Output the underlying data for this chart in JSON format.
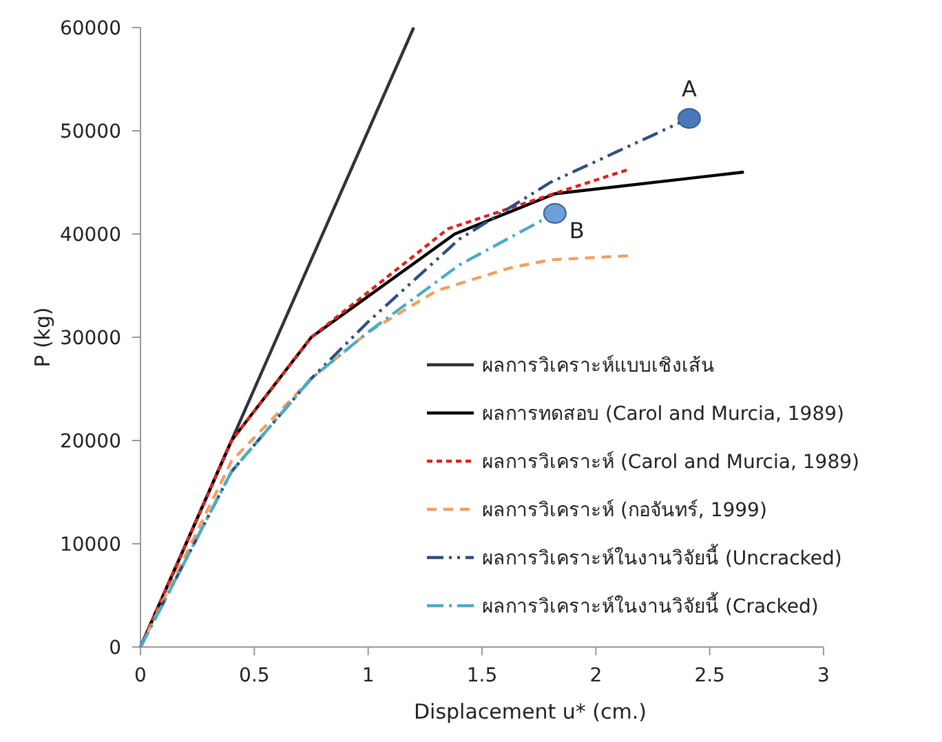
{
  "chart_data": {
    "type": "line",
    "xlabel": "Displacement u* (cm.)",
    "ylabel": "P (kg)",
    "xlim": [
      0,
      3
    ],
    "xticks": [
      0,
      0.5,
      1,
      1.5,
      2,
      2.5,
      3
    ],
    "ylim": [
      0,
      60000
    ],
    "yticks": [
      0,
      10000,
      20000,
      30000,
      40000,
      50000,
      60000
    ],
    "grid": false,
    "legend": "bottom right",
    "marker": "none",
    "series": [
      {
        "name": "ผลการวิเคราะห์แบบเชิงเส้น",
        "color": "#333333",
        "line_style": "solid",
        "x": [
          0,
          1.2
        ],
        "values": [
          0,
          60000
        ]
      },
      {
        "name": "ผลการทดสอบ (Carol and Murcia, 1989)",
        "color": "#000000",
        "line_style": "solid",
        "x": [
          0,
          0.4,
          0.75,
          1.38,
          1.82,
          2.65
        ],
        "values": [
          0,
          20000,
          30000,
          40000,
          43900,
          46000
        ]
      },
      {
        "name": "ผลการวิเคราะห์ (Carol and Murcia, 1989)",
        "color": "#e0201c",
        "line_style": "dotted",
        "x": [
          0,
          0.4,
          0.75,
          1.35,
          1.8,
          2.15
        ],
        "values": [
          0,
          20000,
          30000,
          40500,
          43800,
          46300
        ]
      },
      {
        "name": "ผลการวิเคราะห์ (กอจันทร์, 1999)",
        "color": "#f0a060",
        "line_style": "dashed",
        "x": [
          0,
          0.4,
          0.75,
          1.0,
          1.3,
          1.62,
          1.8,
          2.15
        ],
        "values": [
          0,
          18000,
          26000,
          30500,
          34500,
          36700,
          37500,
          37900
        ]
      },
      {
        "name": "ผลการวิเคราะห์ในงานวิจัยนี้ (Uncracked)",
        "color": "#2f5080",
        "line_style": "dashdotdot",
        "x": [
          0,
          0.4,
          0.75,
          1.0,
          1.4,
          1.8,
          2.41
        ],
        "values": [
          0,
          17000,
          26000,
          31500,
          39500,
          45000,
          51200
        ]
      },
      {
        "name": "ผลการวิเคราะห์ในงานวิจัยนี้ (Cracked)",
        "color": "#4bacc6",
        "line_style": "dashdot",
        "x": [
          0,
          0.4,
          0.75,
          1.0,
          1.4,
          1.82
        ],
        "values": [
          0,
          17000,
          26000,
          30500,
          37000,
          42000
        ]
      },
      {
        "type": "scatter",
        "marker": "circle",
        "color": "#4a78b8",
        "x": [
          2.41
        ],
        "values": [
          51200
        ]
      },
      {
        "type": "scatter",
        "marker": "circle",
        "color": "#6e9fd6",
        "x": [
          1.82
        ],
        "values": [
          42000
        ]
      }
    ],
    "annotations": [
      {
        "text": "A",
        "x": 2.41,
        "y": 51200
      },
      {
        "text": "B",
        "x": 1.82,
        "y": 42000
      }
    ]
  }
}
